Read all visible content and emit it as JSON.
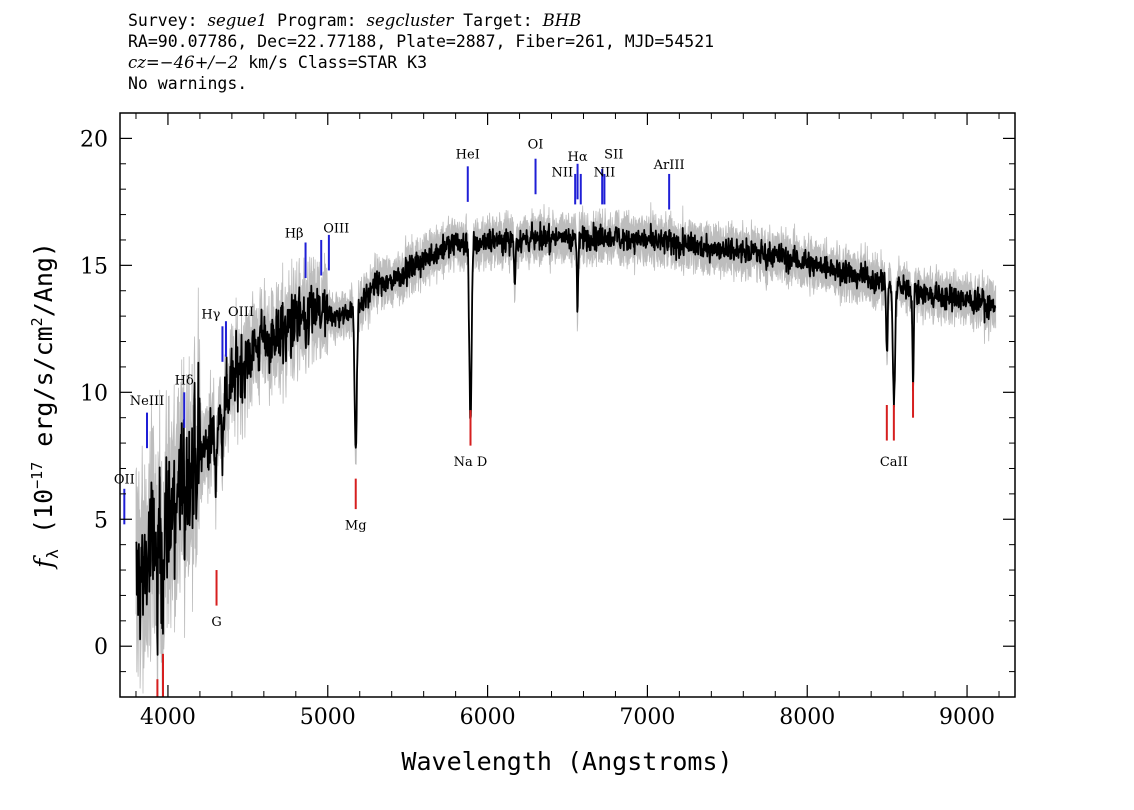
{
  "header": {
    "survey_label": "Survey:",
    "survey": "segue1",
    "program_label": "Program:",
    "program": "segcluster",
    "target_label": "Target:",
    "target": "BHB",
    "line2": "RA=90.07786, Dec=22.77188, Plate=2887, Fiber=261, MJD=54521",
    "cz_label": "cz=",
    "cz_value": "−46+/−2",
    "cz_rest": " km/s Class=STAR K3",
    "line4": "No warnings."
  },
  "chart_data": {
    "type": "line",
    "xlabel": "Wavelength (Angstroms)",
    "ylabel_prefix": "f",
    "ylabel_sub": "λ",
    "ylabel_mid": " (10",
    "ylabel_exp": "−17",
    "ylabel_unit": " erg/s/cm",
    "ylabel_exp2": "2",
    "ylabel_tail": "/Ang)",
    "xlim": [
      3700,
      9300
    ],
    "ylim": [
      -2,
      21
    ],
    "x_ticks": [
      4000,
      5000,
      6000,
      7000,
      8000,
      9000
    ],
    "x_tick_labels": [
      "4000",
      "5000",
      "6000",
      "7000",
      "8000",
      "9000"
    ],
    "y_ticks": [
      0,
      5,
      10,
      15,
      20
    ],
    "y_tick_labels": [
      "0",
      "5",
      "10",
      "15",
      "20"
    ],
    "continuum": [
      [
        3800,
        2.5
      ],
      [
        3850,
        3.0
      ],
      [
        3900,
        4.0
      ],
      [
        4000,
        5.0
      ],
      [
        4100,
        6.5
      ],
      [
        4200,
        7.5
      ],
      [
        4300,
        8.5
      ],
      [
        4400,
        10.5
      ],
      [
        4500,
        11.5
      ],
      [
        4600,
        12.0
      ],
      [
        4700,
        12.3
      ],
      [
        4800,
        12.8
      ],
      [
        4900,
        13.2
      ],
      [
        5000,
        13.0
      ],
      [
        5100,
        13.0
      ],
      [
        5200,
        13.5
      ],
      [
        5300,
        14.2
      ],
      [
        5400,
        14.4
      ],
      [
        5500,
        14.8
      ],
      [
        5600,
        15.2
      ],
      [
        5700,
        15.6
      ],
      [
        5800,
        15.9
      ],
      [
        5900,
        15.8
      ],
      [
        6000,
        16.0
      ],
      [
        6200,
        16.0
      ],
      [
        6400,
        16.1
      ],
      [
        6600,
        16.1
      ],
      [
        6800,
        16.1
      ],
      [
        7000,
        16.0
      ],
      [
        7200,
        15.8
      ],
      [
        7400,
        15.7
      ],
      [
        7600,
        15.6
      ],
      [
        7800,
        15.4
      ],
      [
        8000,
        15.1
      ],
      [
        8200,
        14.8
      ],
      [
        8400,
        14.5
      ],
      [
        8600,
        14.1
      ],
      [
        8800,
        13.8
      ],
      [
        9000,
        13.6
      ],
      [
        9180,
        13.4
      ]
    ],
    "absorption": [
      {
        "x": 3934,
        "depth": 4.0
      },
      {
        "x": 3969,
        "depth": 3.0
      },
      {
        "x": 4102,
        "depth": 1.5
      },
      {
        "x": 4300,
        "depth": 2.0
      },
      {
        "x": 4341,
        "depth": 1.5
      },
      {
        "x": 4861,
        "depth": 1.5
      },
      {
        "x": 5175,
        "depth": 5.5
      },
      {
        "x": 5893,
        "depth": 7.0
      },
      {
        "x": 6170,
        "depth": 1.5
      },
      {
        "x": 6563,
        "depth": 3.0
      },
      {
        "x": 8498,
        "depth": 3.0
      },
      {
        "x": 8542,
        "depth": 4.5
      },
      {
        "x": 8662,
        "depth": 3.5
      }
    ],
    "emission_lines": [
      {
        "label": "OII",
        "x": 3727,
        "y0": 4.8,
        "y1": 6.2,
        "label_y": 6.4,
        "anchor": "middle"
      },
      {
        "label": "NeIII",
        "x": 3869,
        "y0": 7.8,
        "y1": 9.2,
        "label_y": 9.5,
        "anchor": "middle"
      },
      {
        "label": "Hδ",
        "x": 4102,
        "y0": 8.6,
        "y1": 10.0,
        "label_y": 10.3,
        "anchor": "middle"
      },
      {
        "label": "Hγ",
        "x": 4341,
        "y0": 11.2,
        "y1": 12.6,
        "label_y": 12.9,
        "anchor": "end"
      },
      {
        "label": "OIII",
        "x": 4363,
        "y0": 11.4,
        "y1": 12.8,
        "label_y": 13.0,
        "anchor": "start"
      },
      {
        "label": "Hβ",
        "x": 4861,
        "y0": 14.5,
        "y1": 15.9,
        "label_y": 16.1,
        "anchor": "end"
      },
      {
        "label": "OIII",
        "x": 4959,
        "y0": 14.6,
        "y1": 16.0,
        "label_y": 16.3,
        "anchor": "start"
      },
      {
        "label": "",
        "x": 5007,
        "y0": 14.8,
        "y1": 16.2,
        "label_y": 0,
        "anchor": "middle"
      },
      {
        "label": "HeI",
        "x": 5876,
        "y0": 17.5,
        "y1": 18.9,
        "label_y": 19.2,
        "anchor": "middle"
      },
      {
        "label": "OI",
        "x": 6300,
        "y0": 17.8,
        "y1": 19.2,
        "label_y": 19.6,
        "anchor": "middle"
      },
      {
        "label": "NII",
        "x": 6548,
        "y0": 17.4,
        "y1": 18.6,
        "label_y": 18.5,
        "anchor": "end"
      },
      {
        "label": "Hα",
        "x": 6563,
        "y0": 17.6,
        "y1": 19.0,
        "label_y": 19.1,
        "anchor": "middle"
      },
      {
        "label": "",
        "x": 6583,
        "y0": 17.4,
        "y1": 18.6,
        "label_y": 0,
        "anchor": "middle"
      },
      {
        "label": "SII",
        "x": 6717,
        "y0": 17.4,
        "y1": 18.8,
        "label_y": 19.2,
        "anchor": "start"
      },
      {
        "label": "NII",
        "x": 6731,
        "y0": 17.4,
        "y1": 18.6,
        "label_y": 18.5,
        "anchor": "middle"
      },
      {
        "label": "ArIII",
        "x": 7136,
        "y0": 17.2,
        "y1": 18.6,
        "label_y": 18.8,
        "anchor": "middle"
      }
    ],
    "absorption_lines": [
      {
        "label": "",
        "x": 3934,
        "y0": -2.0,
        "y1": -1.3,
        "label_y": 0,
        "anchor": "middle"
      },
      {
        "label": "",
        "x": 3969,
        "y0": -2.0,
        "y1": -0.3,
        "label_y": 0,
        "anchor": "middle"
      },
      {
        "label": "G",
        "x": 4304,
        "y0": 1.6,
        "y1": 3.0,
        "label_y": 0.8,
        "anchor": "middle"
      },
      {
        "label": "Mg",
        "x": 5175,
        "y0": 5.4,
        "y1": 6.6,
        "label_y": 4.6,
        "anchor": "middle"
      },
      {
        "label": "Na D",
        "x": 5893,
        "y0": 7.9,
        "y1": 9.3,
        "label_y": 7.1,
        "anchor": "middle"
      },
      {
        "label": "",
        "x": 8498,
        "y0": 8.1,
        "y1": 9.5,
        "label_y": 0,
        "anchor": "middle"
      },
      {
        "label": "CaII",
        "x": 8542,
        "y0": 8.1,
        "y1": 9.5,
        "label_y": 7.1,
        "anchor": "middle"
      },
      {
        "label": "",
        "x": 8662,
        "y0": 9.0,
        "y1": 10.4,
        "label_y": 0,
        "anchor": "middle"
      }
    ],
    "colors": {
      "flux": "#000000",
      "error": "#bdbdbd",
      "emission": "#1f1fd6",
      "absorption": "#d61f1f",
      "axis": "#000000"
    }
  }
}
